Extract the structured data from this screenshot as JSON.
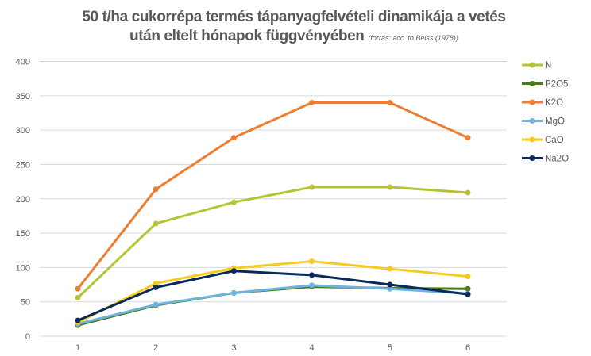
{
  "chart_data": {
    "type": "line",
    "title_line1": "50 t/ha cukorrépa termés tápanyagfelvételi dinamikája a vetés",
    "title_line2": "után eltelt hónapok függvényében",
    "source": "(forrás: acc. to Beiss (1978))",
    "xlabel": "",
    "ylabel": "",
    "x": [
      1,
      2,
      3,
      4,
      5,
      6
    ],
    "x_tick_labels": [
      "1",
      "2",
      "3",
      "4",
      "5",
      "6"
    ],
    "ylim": [
      0,
      400
    ],
    "y_ticks": [
      0,
      50,
      100,
      150,
      200,
      250,
      300,
      350,
      400
    ],
    "y_tick_labels": [
      "0",
      "50",
      "100",
      "150",
      "200",
      "250",
      "300",
      "350",
      "400"
    ],
    "grid": "horizontal",
    "legend_position": "right",
    "series": [
      {
        "name": "N",
        "color": "#B5C334",
        "values": [
          56,
          164,
          195,
          217,
          217,
          209
        ]
      },
      {
        "name": "P2O5",
        "color": "#4E7A1E",
        "values": [
          16,
          45,
          63,
          72,
          70,
          69
        ]
      },
      {
        "name": "K2O",
        "color": "#ED7D31",
        "values": [
          69,
          214,
          289,
          340,
          340,
          289
        ]
      },
      {
        "name": "MgO",
        "color": "#6CB4E0",
        "values": [
          18,
          46,
          63,
          74,
          69,
          62
        ]
      },
      {
        "name": "CaO",
        "color": "#F5CC1D",
        "values": [
          20,
          77,
          99,
          109,
          98,
          87
        ]
      },
      {
        "name": "Na2O",
        "color": "#0B2A5B",
        "values": [
          23,
          71,
          95,
          89,
          75,
          61
        ]
      }
    ]
  }
}
